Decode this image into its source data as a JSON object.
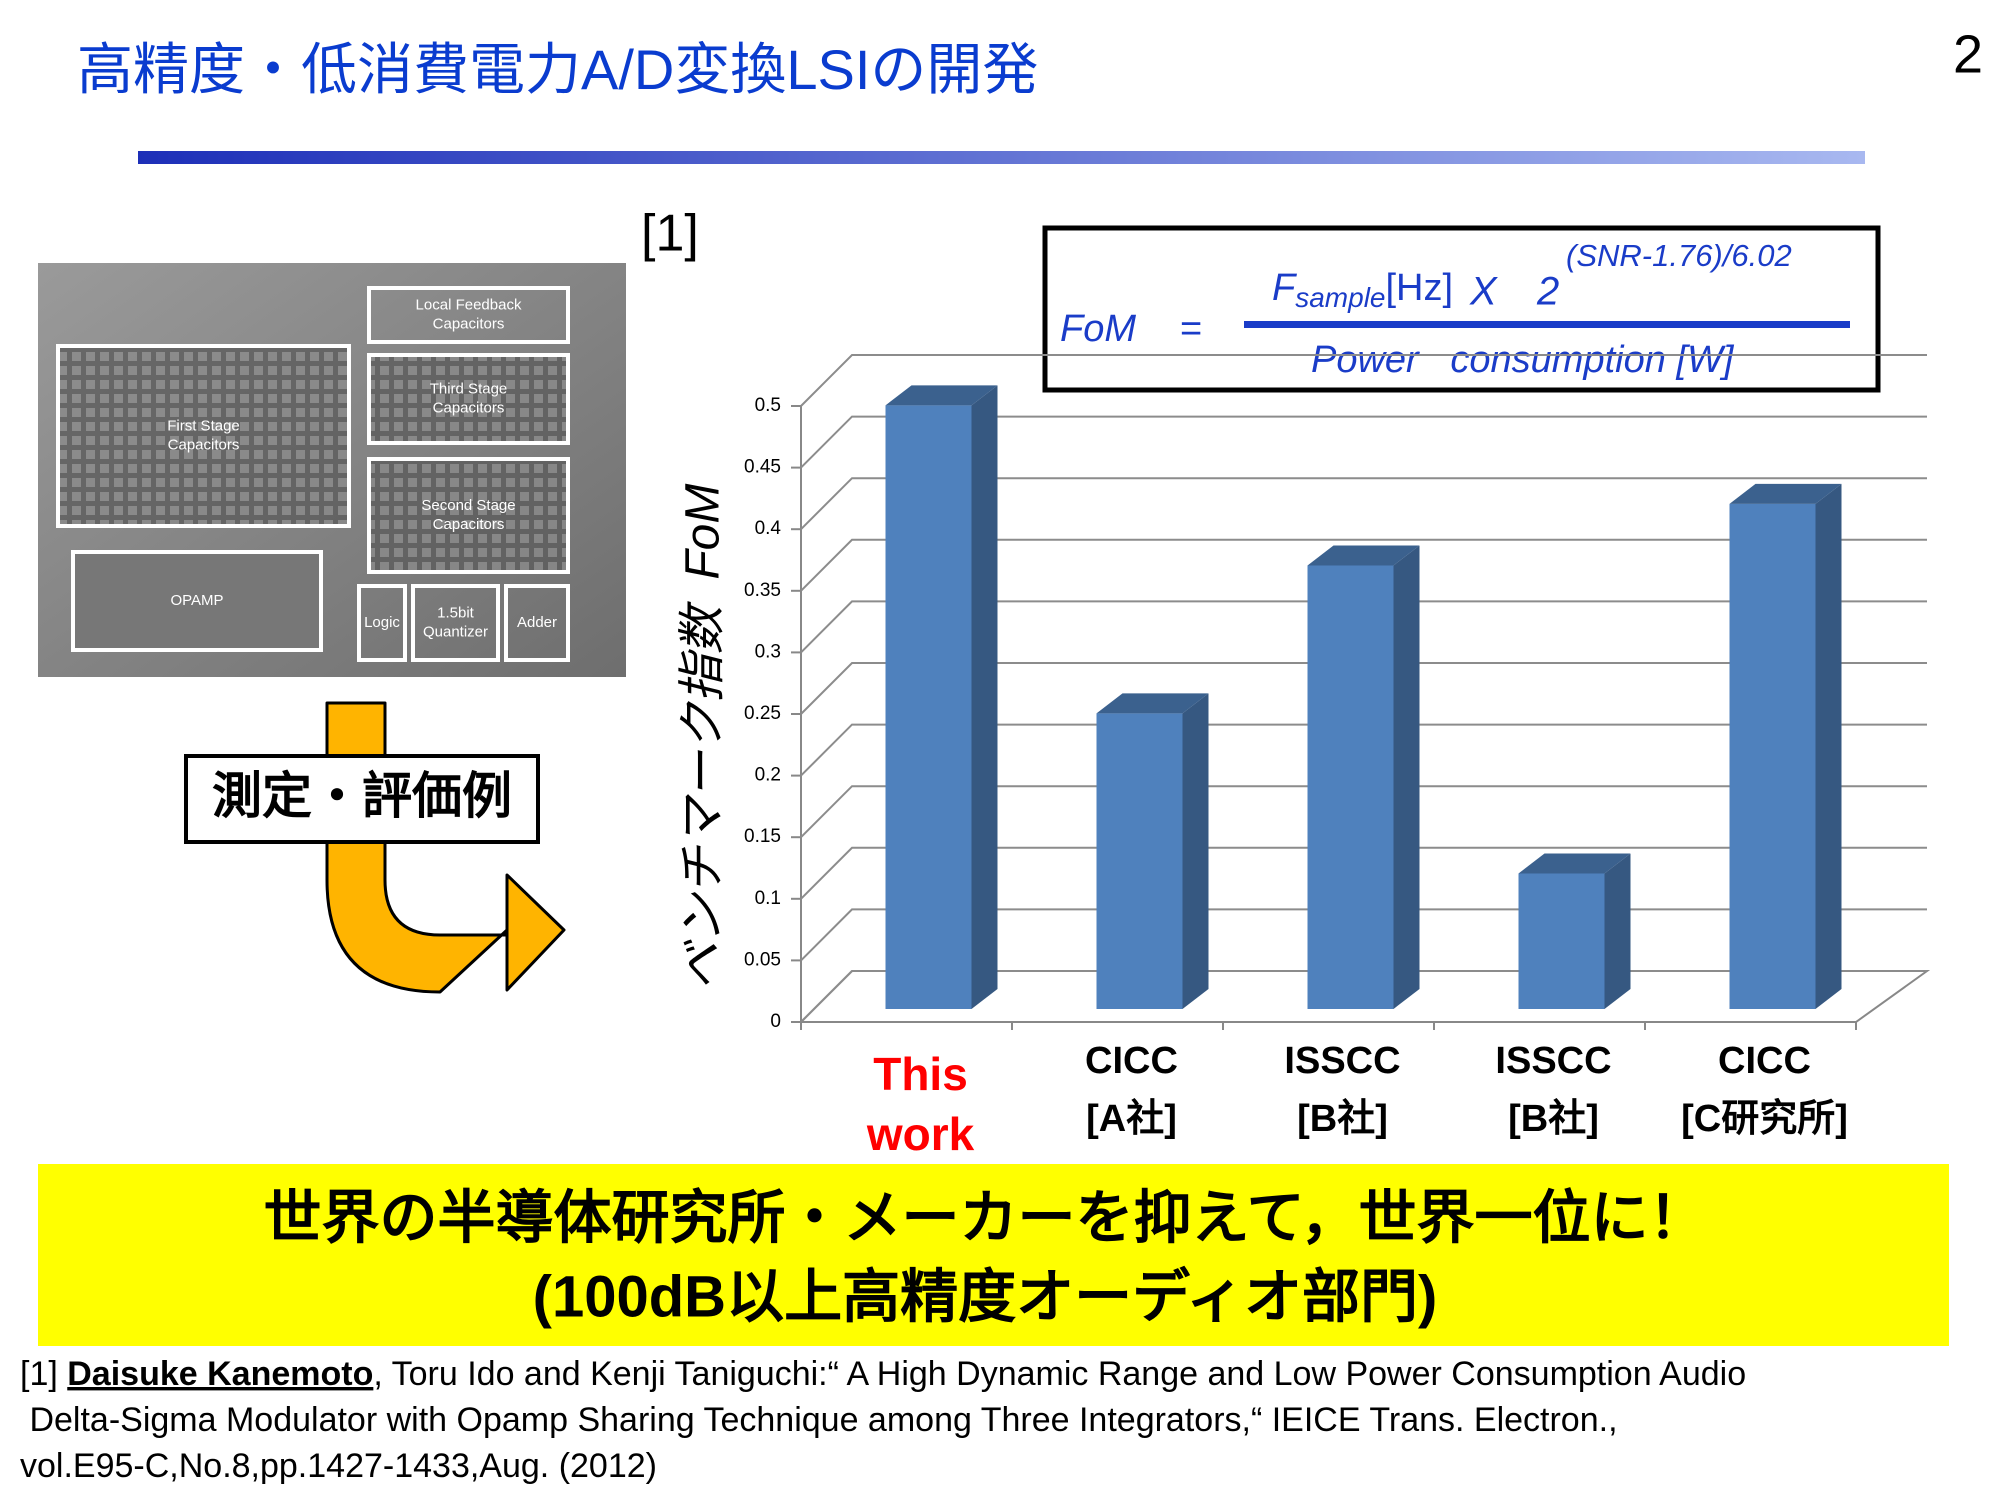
{
  "header": {
    "title": "高精度・低消費電力A/D変換LSIの開発",
    "page_number": "2"
  },
  "chip": {
    "labels": [
      [
        "Local Feedback",
        "Capacitors"
      ],
      [
        "First Stage",
        "Capacitors"
      ],
      [
        "Third Stage",
        "Capacitors"
      ],
      [
        "Second Stage",
        "Capacitors"
      ],
      [
        "OPAMP"
      ],
      [
        "Logic"
      ],
      [
        "1.5bit",
        "Quantizer"
      ],
      [
        "Adder"
      ]
    ]
  },
  "arrow_label": "測定・評価例",
  "citation_mark": "[1]",
  "formula": {
    "lhs": "FoM",
    "equals": "=",
    "f": "F",
    "subscript": "sample",
    "unit": "[Hz]",
    "times": "X",
    "base": "2",
    "exponent": "(SNR-1.76)/6.02",
    "denominator": "Power   consumption [W]"
  },
  "chart_data": {
    "type": "bar3d",
    "y_label": "ベンチマーク指数  FoM",
    "categories": [
      [
        "This",
        "work"
      ],
      [
        "CICC",
        "[A社]"
      ],
      [
        "ISSCC",
        "[B社]"
      ],
      [
        "ISSCC",
        "[B社]"
      ],
      [
        "CICC",
        "[C研究所]"
      ]
    ],
    "category_colors": [
      "#ff0000",
      "#000000",
      "#000000",
      "#000000",
      "#000000"
    ],
    "values": [
      0.49,
      0.24,
      0.36,
      0.11,
      0.41
    ],
    "color": "#4f81bd",
    "ylim": [
      0,
      0.5
    ],
    "yticks": [
      0,
      0.05,
      0.1,
      0.15,
      0.2,
      0.25,
      0.3,
      0.35,
      0.4,
      0.45,
      0.5
    ],
    "grid": true
  },
  "banner": {
    "line1": "世界の半導体研究所・メーカーを抑えて，世界一位に！",
    "line2": "(100dB以上高精度オーディオ部門)"
  },
  "reference": {
    "label": "[1] ",
    "author": "Daisuke Kanemoto",
    "line1": ", Toru Ido and Kenji Taniguchi:“ A High Dynamic Range and Low Power Consumption Audio",
    "line2": " Delta-Sigma Modulator with Opamp Sharing Technique among Three Integrators,“ IEICE Trans. Electron.,",
    "line3": "vol.E95-C,No.8,pp.1427-1433,Aug. (2012)"
  }
}
